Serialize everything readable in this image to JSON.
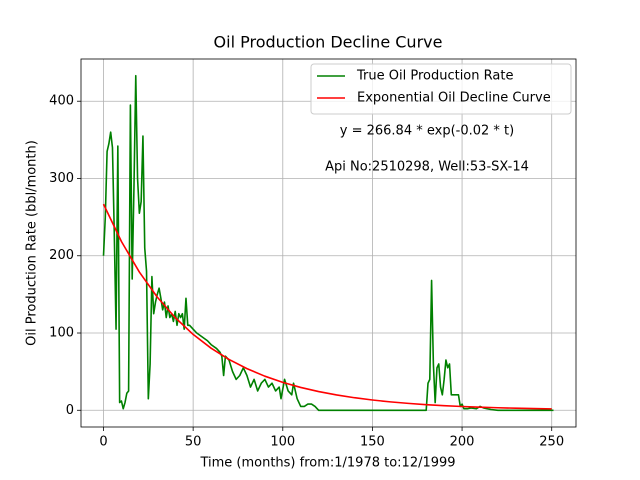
{
  "chart_data": {
    "type": "line",
    "title": "Oil Production Decline Curve",
    "xlabel": "Time (months) from:1/1978 to:12/1999",
    "ylabel": "Oil Production Rate (bbl/month)",
    "annotations": [
      "y = 266.84 * exp(-0.02 * t)",
      "Api No:2510298, Well:53-SX-14"
    ],
    "xlim": [
      -12.55,
      263.55
    ],
    "ylim": [
      -21.65,
      454.65
    ],
    "xticks": [
      0,
      50,
      100,
      150,
      200,
      250
    ],
    "yticks": [
      0,
      100,
      200,
      300,
      400
    ],
    "grid": true,
    "legend": "upper right",
    "series": [
      {
        "name": "True Oil Production Rate",
        "color": "#008000",
        "x": [
          0,
          1,
          2,
          3,
          4,
          5,
          6,
          7,
          8,
          9,
          10,
          11,
          12,
          13,
          14,
          15,
          16,
          17,
          18,
          19,
          20,
          21,
          22,
          23,
          24,
          25,
          26,
          27,
          28,
          29,
          30,
          31,
          32,
          33,
          34,
          35,
          36,
          37,
          38,
          39,
          40,
          41,
          42,
          43,
          44,
          45,
          46,
          47,
          48,
          50,
          52,
          55,
          58,
          60,
          63,
          65,
          66,
          67,
          68,
          70,
          72,
          74,
          76,
          78,
          80,
          82,
          84,
          86,
          88,
          90,
          92,
          94,
          96,
          98,
          99,
          101,
          103,
          105,
          106,
          108,
          110,
          112,
          114,
          116,
          118,
          120,
          125,
          130,
          140,
          150,
          160,
          170,
          180,
          181,
          182,
          183,
          184,
          185,
          186,
          187,
          188,
          189,
          190,
          191,
          192,
          193,
          194,
          196,
          198,
          199,
          200,
          201,
          203,
          205,
          208,
          210,
          212,
          214,
          216,
          220,
          230,
          240,
          251
        ],
        "values": [
          200,
          250,
          335,
          345,
          360,
          340,
          230,
          105,
          342,
          10,
          12,
          2,
          10,
          22,
          25,
          395,
          170,
          290,
          433,
          300,
          255,
          270,
          355,
          210,
          180,
          15,
          60,
          173,
          125,
          140,
          150,
          158,
          145,
          130,
          140,
          120,
          135,
          120,
          125,
          115,
          128,
          110,
          125,
          120,
          125,
          105,
          145,
          110,
          110,
          105,
          100,
          95,
          90,
          85,
          80,
          75,
          70,
          45,
          70,
          65,
          50,
          40,
          45,
          55,
          45,
          30,
          40,
          25,
          35,
          40,
          30,
          35,
          25,
          30,
          15,
          40,
          25,
          20,
          35,
          15,
          5,
          5,
          8,
          8,
          5,
          0,
          0,
          0,
          0,
          0,
          0,
          0,
          0,
          35,
          40,
          168,
          60,
          10,
          55,
          60,
          30,
          20,
          40,
          65,
          55,
          60,
          20,
          20,
          20,
          5,
          8,
          2,
          2,
          3,
          2,
          5,
          3,
          2,
          1,
          0,
          0,
          0,
          0
        ]
      },
      {
        "name": "Exponential Oil Decline Curve",
        "color": "#ff0000",
        "x": [
          0,
          10,
          20,
          30,
          40,
          50,
          60,
          70,
          80,
          90,
          100,
          110,
          120,
          130,
          140,
          150,
          160,
          170,
          180,
          190,
          200,
          210,
          220,
          230,
          240,
          250
        ],
        "values": [
          266.84,
          218.47,
          178.87,
          146.44,
          119.9,
          98.17,
          80.37,
          65.8,
          53.88,
          44.11,
          36.11,
          29.57,
          24.21,
          19.82,
          16.23,
          13.29,
          10.88,
          8.91,
          7.29,
          5.97,
          4.89,
          4.0,
          3.28,
          2.68,
          2.2,
          1.8
        ]
      }
    ]
  }
}
